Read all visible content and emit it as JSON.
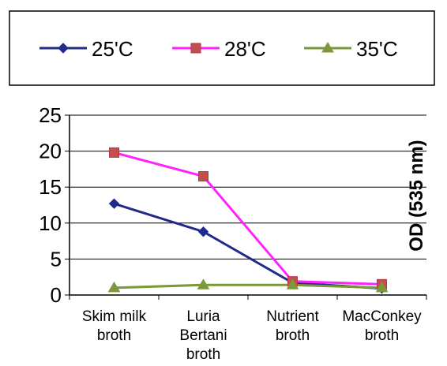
{
  "chart_data": {
    "type": "line",
    "categories": [
      [
        "Skim milk",
        "broth"
      ],
      [
        "Luria",
        "Bertani",
        "broth"
      ],
      [
        "Nutrient",
        "broth"
      ],
      [
        "MacConkey",
        "broth"
      ]
    ],
    "ylabel": "OD (535 nm)",
    "ylim": [
      0,
      25
    ],
    "yticks": [
      0,
      5,
      10,
      15,
      20,
      25
    ],
    "grid": true,
    "legend_position": "top",
    "series": [
      {
        "name": "25'C",
        "values": [
          12.7,
          8.8,
          1.7,
          0.9
        ],
        "color": "#1f2a8a",
        "marker": "diamond"
      },
      {
        "name": "28'C",
        "values": [
          19.8,
          16.5,
          1.9,
          1.5
        ],
        "color": "#ff22ff",
        "marker": "square"
      },
      {
        "name": "35'C",
        "values": [
          1.0,
          1.4,
          1.4,
          1.0
        ],
        "color": "#7a9a3a",
        "marker": "triangle"
      }
    ]
  }
}
